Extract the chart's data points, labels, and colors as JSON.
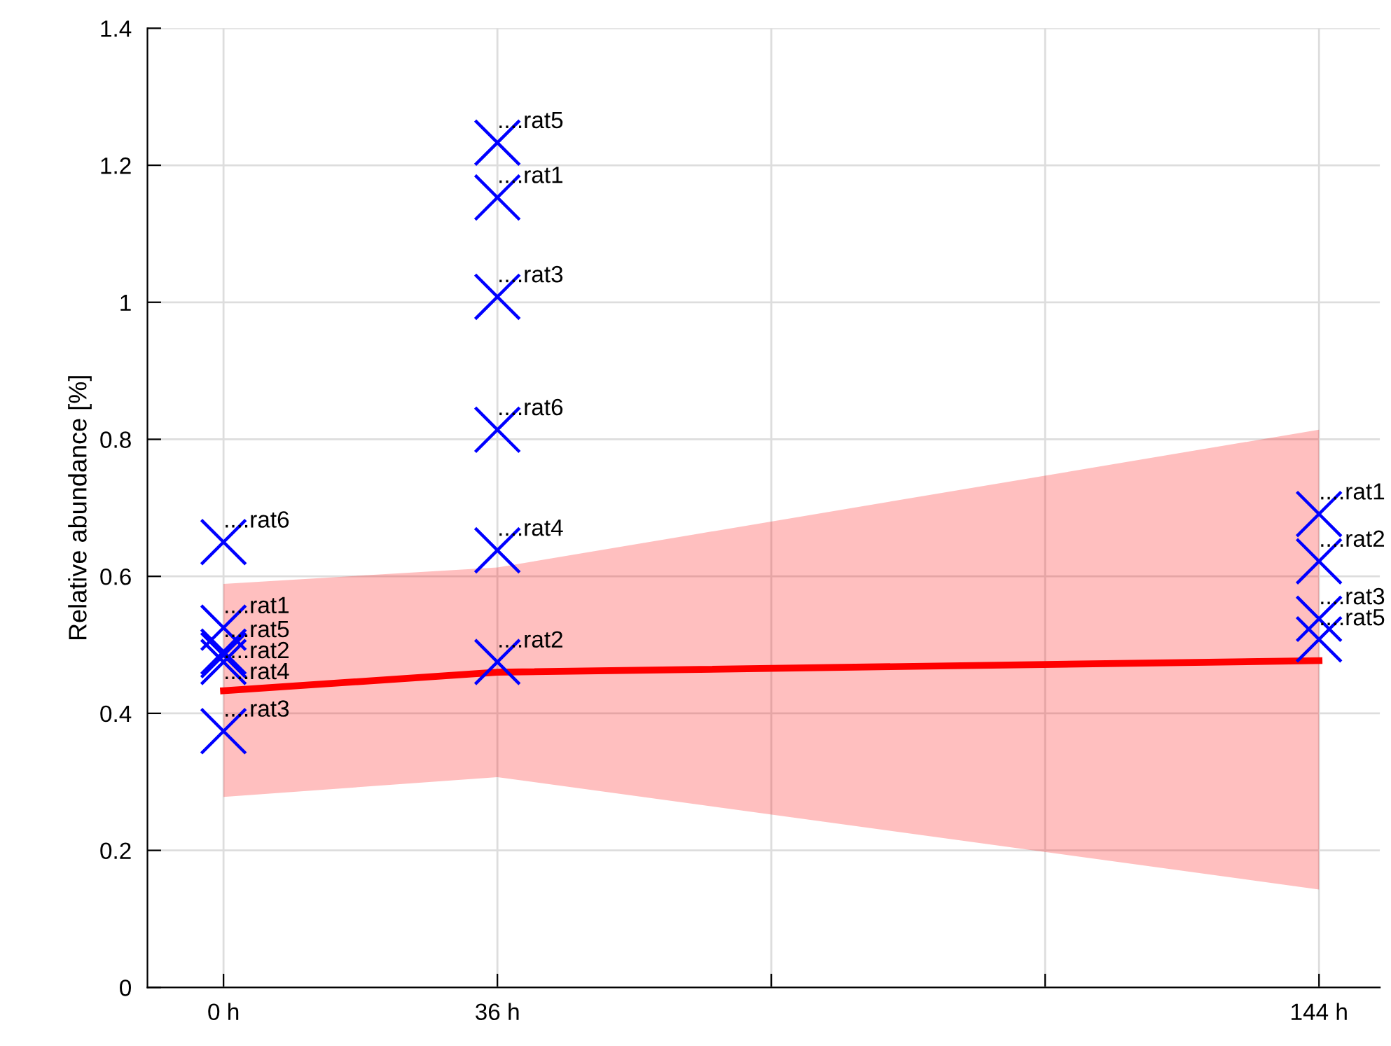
{
  "chart_data": {
    "type": "scatter",
    "ylabel": "Relative abundance [%]",
    "xlim": [
      -10,
      152
    ],
    "ylim": [
      0,
      1.4
    ],
    "xticks": [
      {
        "value": 0,
        "label": "0 h"
      },
      {
        "value": 36,
        "label": "36 h"
      },
      {
        "value": 72,
        "label": null
      },
      {
        "value": 108,
        "label": null
      },
      {
        "value": 144,
        "label": "144 h"
      }
    ],
    "yticks": [
      0,
      0.2,
      0.4,
      0.6,
      0.8,
      1,
      1.2,
      1.4
    ],
    "grid": true,
    "series": [
      {
        "type": "line",
        "color": "#ff0000",
        "x": [
          0,
          36,
          144
        ],
        "values": [
          0.433,
          0.46,
          0.477
        ],
        "lower": [
          0.278,
          0.307,
          0.143
        ],
        "upper": [
          0.589,
          0.613,
          0.814
        ],
        "marker": "none",
        "line_style": "solid"
      },
      {
        "color": "#0000ff",
        "marker": "cross",
        "x": [
          0,
          0,
          0,
          0,
          0,
          0,
          36,
          36,
          36,
          36,
          36,
          36,
          144,
          144,
          144,
          144
        ],
        "values": [
          0.65,
          0.525,
          0.49,
          0.485,
          0.475,
          0.374,
          1.233,
          1.153,
          1.008,
          0.814,
          0.638,
          0.475,
          0.691,
          0.622,
          0.538,
          0.508
        ]
      }
    ],
    "annotations": [
      {
        "text": "....rat6",
        "x": 0,
        "y": 0.65
      },
      {
        "text": "....rat1",
        "x": 0,
        "y": 0.525
      },
      {
        "text": "....rat5",
        "x": 0,
        "y": 0.49
      },
      {
        "text": "....rat2",
        "x": 0,
        "y": 0.485
      },
      {
        "text": "....rat4",
        "x": 0,
        "y": 0.475
      },
      {
        "text": "....rat3",
        "x": 0,
        "y": 0.374
      },
      {
        "text": "....rat5",
        "x": 36,
        "y": 1.233
      },
      {
        "text": "....rat1",
        "x": 36,
        "y": 1.153
      },
      {
        "text": "....rat3",
        "x": 36,
        "y": 1.008
      },
      {
        "text": "....rat6",
        "x": 36,
        "y": 0.814
      },
      {
        "text": "....rat4",
        "x": 36,
        "y": 0.638
      },
      {
        "text": "....rat2",
        "x": 36,
        "y": 0.475
      },
      {
        "text": "....rat1",
        "x": 144,
        "y": 0.691
      },
      {
        "text": "....rat2",
        "x": 144,
        "y": 0.622
      },
      {
        "text": "....rat3",
        "x": 144,
        "y": 0.538
      },
      {
        "text": "....rat5",
        "x": 144,
        "y": 0.508
      }
    ]
  }
}
